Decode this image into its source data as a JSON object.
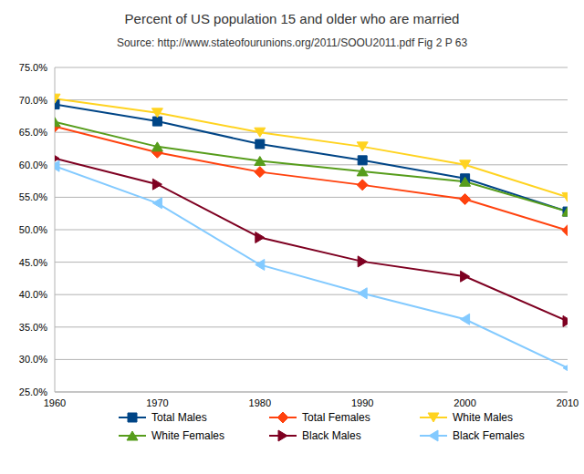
{
  "chart_data": {
    "type": "line",
    "title": "Percent of US population 15 and older who are married",
    "subtitle": "Source:  http://www.stateofourunions.org/2011/SOOU2011.pdf Fig 2 P 63",
    "x": [
      1960,
      1970,
      1980,
      1990,
      2000,
      2010
    ],
    "xlim": [
      1960,
      2010
    ],
    "xticks": [
      1960,
      1970,
      1980,
      1990,
      2000,
      2010
    ],
    "ylim": [
      25,
      75
    ],
    "yticks": [
      {
        "value": 25,
        "label": "25.0%"
      },
      {
        "value": 30,
        "label": "30.0%"
      },
      {
        "value": 35,
        "label": "35.0%"
      },
      {
        "value": 40,
        "label": "40.0%"
      },
      {
        "value": 45,
        "label": "45.0%"
      },
      {
        "value": 50,
        "label": "50.0%"
      },
      {
        "value": 55,
        "label": "55.0%"
      },
      {
        "value": 60,
        "label": "60.0%"
      },
      {
        "value": 65,
        "label": "65.0%"
      },
      {
        "value": 70,
        "label": "70.0%"
      },
      {
        "value": 75,
        "label": "75.0%"
      }
    ],
    "grid": true,
    "legend": "bottom",
    "series": [
      {
        "name": "Total Males",
        "color": "#004586",
        "marker": "square",
        "values": [
          69.3,
          66.7,
          63.2,
          60.7,
          57.9,
          52.8
        ]
      },
      {
        "name": "Total Females",
        "color": "#ff420e",
        "marker": "diamond",
        "values": [
          65.9,
          61.9,
          58.9,
          56.9,
          54.7,
          49.9
        ]
      },
      {
        "name": "White Males",
        "color": "#ffd320",
        "marker": "triangle-down",
        "values": [
          70.2,
          68.0,
          65.0,
          62.8,
          60.0,
          55.0
        ]
      },
      {
        "name": "White Females",
        "color": "#579d1c",
        "marker": "triangle-up",
        "values": [
          66.6,
          62.8,
          60.6,
          59.0,
          57.4,
          52.8
        ]
      },
      {
        "name": "Black Males",
        "color": "#7e0021",
        "marker": "triangle-right",
        "values": [
          61.0,
          57.0,
          48.8,
          45.1,
          42.8,
          35.9
        ]
      },
      {
        "name": "Black Females",
        "color": "#83caff",
        "marker": "triangle-left",
        "values": [
          59.8,
          54.1,
          44.6,
          40.2,
          36.2,
          28.7
        ]
      }
    ]
  }
}
